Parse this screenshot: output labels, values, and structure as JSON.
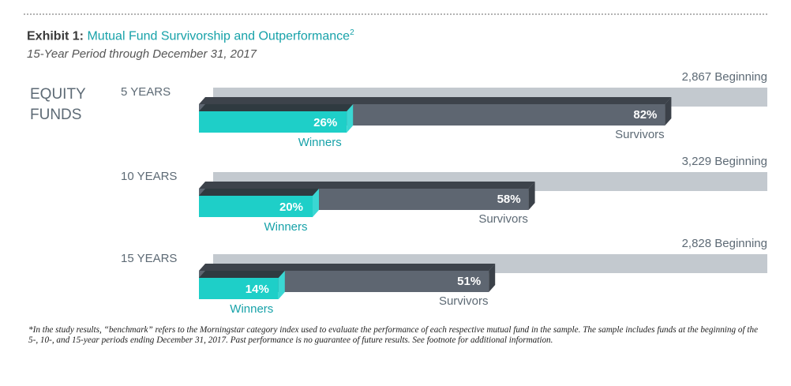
{
  "header": {
    "exhibit_label": "Exhibit 1:",
    "title": "Mutual Fund Survivorship and Outperformance",
    "title_sup": "2",
    "subtitle": "15-Year Period through December 31, 2017"
  },
  "category_label": "EQUITY FUNDS",
  "colors": {
    "beginning": "#c3c9cf",
    "survivors": "#5e6671",
    "winners": "#1ecfc8",
    "accent_text": "#17a2a9",
    "label_text": "#5d6a75"
  },
  "chart_data": {
    "type": "bar",
    "categories": [
      "5 YEARS",
      "10 YEARS",
      "15 YEARS"
    ],
    "series": [
      {
        "name": "Beginning",
        "values": [
          2867,
          3229,
          2828
        ],
        "labels": [
          "2,867 Beginning",
          "3,229 Beginning",
          "2,828 Beginning"
        ]
      },
      {
        "name": "Survivors",
        "values": [
          82,
          58,
          51
        ],
        "labels": [
          "82%",
          "58%",
          "51%"
        ]
      },
      {
        "name": "Winners",
        "values": [
          26,
          20,
          14
        ],
        "labels": [
          "26%",
          "20%",
          "14%"
        ]
      }
    ],
    "survivors_caption": "Survivors",
    "winners_caption": "Winners",
    "unit": "percent of funds at beginning of period"
  },
  "footnote": "*In the study results, “benchmark” refers to the Morningstar category index used to evaluate the performance of each respective mutual fund in the sample. The sample includes funds at the beginning of the 5-, 10-, and 15-year periods ending December 31, 2017. Past performance is no guarantee of future results. See footnote for additional information."
}
